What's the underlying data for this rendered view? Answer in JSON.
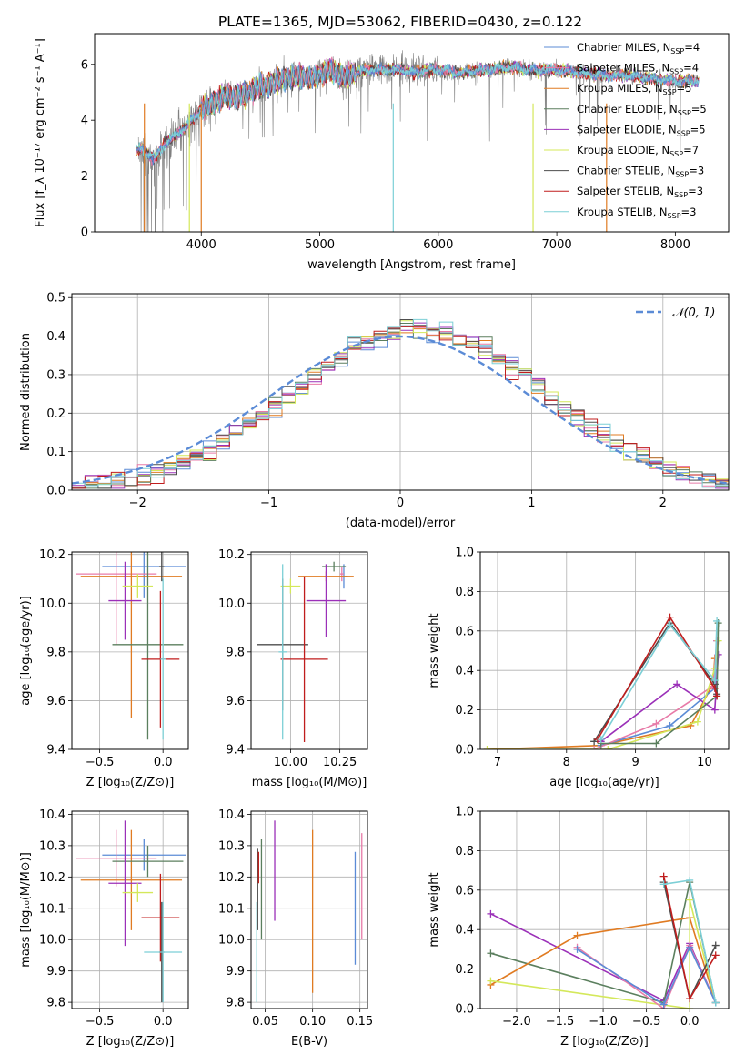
{
  "figure": {
    "title": "PLATE=1365, MJD=53062, FIBERID=0430, z=0.122"
  },
  "series_colors": {
    "Chabrier MILES": "#5b8bd6",
    "Salpeter MILES": "#e87ba8",
    "Kroupa MILES": "#e07b22",
    "Chabrier ELODIE": "#5b7f5e",
    "Salpeter ELODIE": "#9b30b8",
    "Kroupa ELODIE": "#d4e85a",
    "Chabrier STELIB": "#4d4d4d",
    "Salpeter STELIB": "#c01d1d",
    "Kroupa STELIB": "#7ccfd6"
  },
  "chart_data": [
    {
      "id": "spectrum",
      "type": "line",
      "title": "PLATE=1365, MJD=53062, FIBERID=0430, z=0.122",
      "xlabel": "wavelength [Angstrom, rest frame]",
      "ylabel": "Flux [f_λ 10⁻¹⁷ erg cm⁻² s⁻¹ A⁻¹]",
      "xlim": [
        3100,
        8450
      ],
      "ylim": [
        0,
        7.1
      ],
      "xticks": [
        4000,
        5000,
        6000,
        7000,
        8000
      ],
      "yticks": [
        0,
        2,
        4,
        6
      ],
      "grid": false,
      "legend_position": "top-right",
      "data_color": "#808080",
      "data_x_range": [
        3470,
        8200
      ],
      "continuum": {
        "x": [
          3450,
          3500,
          3600,
          3700,
          3800,
          3900,
          4000,
          4100,
          4200,
          4300,
          4400,
          4500,
          4600,
          4700,
          4800,
          4900,
          5000,
          5100,
          5200,
          5300,
          5400,
          5500,
          5600,
          5700,
          5800,
          5900,
          6000,
          6200,
          6400,
          6600,
          6800,
          7000,
          7200,
          7400,
          7600,
          7800,
          8000,
          8200
        ],
        "y": [
          2.9,
          3.0,
          2.6,
          3.2,
          3.5,
          3.9,
          4.4,
          4.6,
          4.9,
          4.8,
          5.0,
          5.2,
          5.3,
          5.5,
          5.6,
          5.5,
          5.6,
          5.8,
          5.5,
          5.7,
          5.8,
          5.8,
          5.8,
          5.8,
          5.7,
          5.8,
          5.8,
          5.7,
          5.8,
          5.9,
          5.8,
          5.8,
          5.7,
          5.6,
          5.6,
          5.5,
          5.4,
          5.4
        ]
      },
      "legend": [
        {
          "label": "Chabrier MILES, N",
          "sub": "SSP",
          "tail": "=4",
          "series": "Chabrier MILES"
        },
        {
          "label": "Salpeter MILES, N",
          "sub": "SSP",
          "tail": "=4",
          "series": "Salpeter MILES"
        },
        {
          "label": "Kroupa MILES, N",
          "sub": "SSP",
          "tail": "=5",
          "series": "Kroupa MILES"
        },
        {
          "label": "Chabrier ELODIE, N",
          "sub": "SSP",
          "tail": "=5",
          "series": "Chabrier ELODIE"
        },
        {
          "label": "Salpeter ELODIE, N",
          "sub": "SSP",
          "tail": "=5",
          "series": "Salpeter ELODIE"
        },
        {
          "label": "Kroupa ELODIE, N",
          "sub": "SSP",
          "tail": "=7",
          "series": "Kroupa ELODIE"
        },
        {
          "label": "Chabrier STELIB, N",
          "sub": "SSP",
          "tail": "=3",
          "series": "Chabrier STELIB"
        },
        {
          "label": "Salpeter STELIB, N",
          "sub": "SSP",
          "tail": "=3",
          "series": "Salpeter STELIB"
        },
        {
          "label": "Kroupa STELIB, N",
          "sub": "SSP",
          "tail": "=3",
          "series": "Kroupa STELIB"
        }
      ],
      "model_edges": [
        {
          "series": "Kroupa MILES",
          "x": 3520
        },
        {
          "series": "Kroupa ELODIE",
          "x": 3900
        },
        {
          "series": "Kroupa MILES",
          "x": 4000
        },
        {
          "series": "Kroupa STELIB",
          "x": 5620
        },
        {
          "series": "Kroupa ELODIE",
          "x": 6800
        },
        {
          "series": "Kroupa MILES",
          "x": 7420
        }
      ]
    },
    {
      "id": "residuals",
      "type": "area",
      "xlabel": "(data-model)/error",
      "ylabel": "Normed distribution",
      "xlim": [
        -2.5,
        2.5
      ],
      "ylim": [
        0,
        0.51
      ],
      "xticks": [
        -2,
        -1,
        0,
        1,
        2
      ],
      "xticklabels": [
        "−2",
        "−1",
        "0",
        "1",
        "2"
      ],
      "yticks": [
        0,
        0.1,
        0.2,
        0.3,
        0.4,
        0.5
      ],
      "yticklabels": [
        "0.0",
        "0.1",
        "0.2",
        "0.3",
        "0.4",
        "0.5"
      ],
      "grid": true,
      "bin_width": 0.1,
      "legend_position": "top-right",
      "gaussian_label": "𝒩(0, 1)",
      "gaussian_color": "#5b8bd6"
    },
    {
      "id": "age-vs-Z",
      "type": "scatter",
      "xlabel": "Z [log₁₀(Z/Z⊙)]",
      "ylabel": "age  [log₁₀(age/yr)]",
      "xlim": [
        -0.72,
        0.2
      ],
      "ylim": [
        9.4,
        10.21
      ],
      "xticks": [
        -0.5,
        0.0
      ],
      "xticklabels": [
        "−0.5",
        "0.0"
      ],
      "yticks": [
        9.4,
        9.6,
        9.8,
        10.0,
        10.2
      ],
      "yticklabels": [
        "9.4",
        "9.6",
        "9.8",
        "10.0",
        "10.2"
      ],
      "grid": true,
      "points": [
        {
          "series": "Chabrier MILES",
          "x": -0.15,
          "y": 10.15,
          "xerr": 0.33,
          "yerr": 0.13
        },
        {
          "series": "Salpeter MILES",
          "x": -0.37,
          "y": 10.12,
          "xerr": 0.32,
          "yerr": 0.29
        },
        {
          "series": "Kroupa MILES",
          "x": -0.25,
          "y": 10.11,
          "xerr": 0.4,
          "yerr": 0.58
        },
        {
          "series": "Chabrier ELODIE",
          "x": -0.12,
          "y": 9.83,
          "xerr": 0.28,
          "yerr": 0.39
        },
        {
          "series": "Salpeter ELODIE",
          "x": -0.3,
          "y": 10.01,
          "xerr": 0.13,
          "yerr": 0.16
        },
        {
          "series": "Kroupa ELODIE",
          "x": -0.2,
          "y": 10.07,
          "xerr": 0.12,
          "yerr": 0.05
        },
        {
          "series": "Chabrier STELIB",
          "x": -0.01,
          "y": 10.15,
          "xerr": 0.02,
          "yerr": 0.06
        },
        {
          "series": "Salpeter STELIB",
          "x": -0.02,
          "y": 9.77,
          "xerr": 0.15,
          "yerr": 0.28
        },
        {
          "series": "Kroupa STELIB",
          "x": 0.0,
          "y": 9.77,
          "xerr": 0.02,
          "yerr": 0.33
        }
      ]
    },
    {
      "id": "age-vs-mass",
      "type": "scatter",
      "xlabel": "mass [log₁₀(M/M⊙)]",
      "ylabel": "",
      "xlim": [
        9.8,
        10.39
      ],
      "ylim": [
        9.4,
        10.21
      ],
      "xticks": [
        10.0,
        10.25
      ],
      "xticklabels": [
        "10.00",
        "10.25"
      ],
      "yticks": [
        9.4,
        9.6,
        9.8,
        10.0,
        10.2
      ],
      "yticklabels": [
        "9.4",
        "9.6",
        "9.8",
        "10.0",
        "10.2"
      ],
      "grid": true,
      "points": [
        {
          "series": "Chabrier MILES",
          "x": 10.27,
          "y": 10.11,
          "xerr": 0.02,
          "yerr": 0.05
        },
        {
          "series": "Salpeter MILES",
          "x": 10.26,
          "y": 10.12,
          "xerr": 0.01,
          "yerr": 0.03
        },
        {
          "series": "Kroupa MILES",
          "x": 10.18,
          "y": 10.11,
          "xerr": 0.14,
          "yerr": 0.02
        },
        {
          "series": "Chabrier ELODIE",
          "x": 10.22,
          "y": 10.15,
          "xerr": 0.06,
          "yerr": 0.02
        },
        {
          "series": "Salpeter ELODIE",
          "x": 10.18,
          "y": 10.01,
          "xerr": 0.1,
          "yerr": 0.15
        },
        {
          "series": "Kroupa ELODIE",
          "x": 10.0,
          "y": 10.07,
          "xerr": 0.05,
          "yerr": 0.03
        },
        {
          "series": "Chabrier STELIB",
          "x": 9.96,
          "y": 9.83,
          "xerr": 0.13,
          "yerr": 0.27
        },
        {
          "series": "Salpeter STELIB",
          "x": 10.07,
          "y": 9.77,
          "xerr": 0.12,
          "yerr": 0.34
        },
        {
          "series": "Kroupa STELIB",
          "x": 9.96,
          "y": 9.8,
          "xerr": 0.02,
          "yerr": 0.36
        }
      ]
    },
    {
      "id": "weight-vs-age",
      "type": "line",
      "xlabel": "age  [log₁₀(age/yr)]",
      "ylabel": "mass weight",
      "xlim": [
        6.75,
        10.35
      ],
      "ylim": [
        0,
        1.0
      ],
      "xticks": [
        7,
        8,
        9,
        10
      ],
      "xticklabels": [
        "7",
        "8",
        "9",
        "10"
      ],
      "yticks": [
        0,
        0.2,
        0.4,
        0.6,
        0.8,
        1.0
      ],
      "yticklabels": [
        "0.0",
        "0.2",
        "0.4",
        "0.6",
        "0.8",
        "1.0"
      ],
      "grid": true,
      "series": [
        {
          "series": "Kroupa MILES",
          "x": [
            6.85,
            8.5,
            9.8,
            10.12,
            10.15
          ],
          "y": [
            0.0,
            0.02,
            0.12,
            0.33,
            0.46
          ]
        },
        {
          "series": "Chabrier MILES",
          "x": [
            8.5,
            9.5,
            10.15,
            10.18
          ],
          "y": [
            0.02,
            0.12,
            0.31,
            0.55
          ]
        },
        {
          "series": "Salpeter MILES",
          "x": [
            8.4,
            9.3,
            10.12,
            10.18
          ],
          "y": [
            0.0,
            0.13,
            0.32,
            0.55
          ]
        },
        {
          "series": "Salpeter ELODIE",
          "x": [
            8.5,
            9.6,
            10.15,
            10.2
          ],
          "y": [
            0.04,
            0.33,
            0.2,
            0.48
          ]
        },
        {
          "series": "Kroupa ELODIE",
          "x": [
            6.85,
            8.6,
            9.9,
            10.15,
            10.2
          ],
          "y": [
            0.0,
            0.0,
            0.14,
            0.41,
            0.55
          ]
        },
        {
          "series": "Chabrier ELODIE",
          "x": [
            8.5,
            9.3,
            10.18,
            10.2
          ],
          "y": [
            0.03,
            0.03,
            0.27,
            0.64
          ]
        },
        {
          "series": "Chabrier STELIB",
          "x": [
            8.4,
            9.5,
            10.15,
            10.18
          ],
          "y": [
            0.04,
            0.64,
            0.33,
            0.28
          ]
        },
        {
          "series": "Salpeter STELIB",
          "x": [
            8.45,
            9.5,
            10.15,
            10.18
          ],
          "y": [
            0.05,
            0.67,
            0.31,
            0.27
          ]
        },
        {
          "series": "Kroupa STELIB",
          "x": [
            8.5,
            9.5,
            10.15,
            10.18
          ],
          "y": [
            0.05,
            0.63,
            0.35,
            0.65
          ]
        }
      ]
    },
    {
      "id": "mass-vs-Z",
      "type": "scatter",
      "xlabel": "Z [log₁₀(Z/Z⊙)]",
      "ylabel": "mass [log₁₀(M/M⊙)]",
      "xlim": [
        -0.72,
        0.2
      ],
      "ylim": [
        9.78,
        10.41
      ],
      "xticks": [
        -0.5,
        0.0
      ],
      "xticklabels": [
        "−0.5",
        "0.0"
      ],
      "yticks": [
        9.8,
        9.9,
        10.0,
        10.1,
        10.2,
        10.3,
        10.4
      ],
      "yticklabels": [
        "9.8",
        "9.9",
        "10.0",
        "10.1",
        "10.2",
        "10.3",
        "10.4"
      ],
      "grid": true,
      "points": [
        {
          "series": "Chabrier MILES",
          "x": -0.15,
          "y": 10.27,
          "xerr": 0.33,
          "yerr": 0.05
        },
        {
          "series": "Salpeter MILES",
          "x": -0.37,
          "y": 10.26,
          "xerr": 0.32,
          "yerr": 0.09
        },
        {
          "series": "Kroupa MILES",
          "x": -0.25,
          "y": 10.19,
          "xerr": 0.4,
          "yerr": 0.16
        },
        {
          "series": "Chabrier ELODIE",
          "x": -0.12,
          "y": 10.25,
          "xerr": 0.28,
          "yerr": 0.05
        },
        {
          "series": "Salpeter ELODIE",
          "x": -0.3,
          "y": 10.18,
          "xerr": 0.13,
          "yerr": 0.2
        },
        {
          "series": "Kroupa ELODIE",
          "x": -0.2,
          "y": 10.15,
          "xerr": 0.12,
          "yerr": 0.03
        },
        {
          "series": "Chabrier STELIB",
          "x": -0.01,
          "y": 9.96,
          "xerr": 0.02,
          "yerr": 0.16
        },
        {
          "series": "Salpeter STELIB",
          "x": -0.02,
          "y": 10.07,
          "xerr": 0.15,
          "yerr": 0.14
        },
        {
          "series": "Kroupa STELIB",
          "x": 0.0,
          "y": 9.96,
          "xerr": 0.15,
          "yerr": 0.16
        }
      ]
    },
    {
      "id": "mass-vs-ebv",
      "type": "scatter",
      "xlabel": "E(B-V)",
      "ylabel": "",
      "xlim": [
        0.035,
        0.158
      ],
      "ylim": [
        9.78,
        10.41
      ],
      "xticks": [
        0.05,
        0.1,
        0.15
      ],
      "xticklabels": [
        "0.05",
        "0.10",
        "0.15"
      ],
      "yticks": [
        9.8,
        9.9,
        10.0,
        10.1,
        10.2,
        10.3,
        10.4
      ],
      "yticklabels": [
        "9.8",
        "9.9",
        "10.0",
        "10.1",
        "10.2",
        "10.3",
        "10.4"
      ],
      "grid": true,
      "points": [
        {
          "series": "Chabrier MILES",
          "x": 0.145,
          "y": 10.1,
          "xerr": 0,
          "yerr": 0.18
        },
        {
          "series": "Salpeter MILES",
          "x": 0.152,
          "y": 10.17,
          "xerr": 0,
          "yerr": 0.17
        },
        {
          "series": "Kroupa MILES",
          "x": 0.1,
          "y": 10.09,
          "xerr": 0,
          "yerr": 0.26
        },
        {
          "series": "Chabrier ELODIE",
          "x": 0.046,
          "y": 10.16,
          "xerr": 0,
          "yerr": 0.16
        },
        {
          "series": "Salpeter ELODIE",
          "x": 0.06,
          "y": 10.22,
          "xerr": 0,
          "yerr": 0.16
        },
        {
          "series": "Kroupa ELODIE",
          "x": 0.043,
          "y": 10.23,
          "xerr": 0,
          "yerr": 0.05
        },
        {
          "series": "Chabrier STELIB",
          "x": 0.042,
          "y": 10.16,
          "xerr": 0,
          "yerr": 0.13
        },
        {
          "series": "Salpeter STELIB",
          "x": 0.043,
          "y": 10.23,
          "xerr": 0,
          "yerr": 0.05
        },
        {
          "series": "Kroupa STELIB",
          "x": 0.041,
          "y": 9.96,
          "xerr": 0,
          "yerr": 0.16
        }
      ]
    },
    {
      "id": "weight-vs-Z",
      "type": "line",
      "xlabel": "Z [log₁₀(Z/Z⊙)]",
      "ylabel": "mass weight",
      "xlim": [
        -2.42,
        0.45
      ],
      "ylim": [
        0,
        1.0
      ],
      "xticks": [
        -2.0,
        -1.5,
        -1.0,
        -0.5,
        0.0
      ],
      "xticklabels": [
        "−2.0",
        "−1.5",
        "−1.0",
        "−0.5",
        "0.0"
      ],
      "yticks": [
        0,
        0.2,
        0.4,
        0.6,
        0.8,
        1.0
      ],
      "yticklabels": [
        "0.0",
        "0.2",
        "0.4",
        "0.6",
        "0.8",
        "1.0"
      ],
      "grid": true,
      "series": [
        {
          "series": "Salpeter ELODIE",
          "x": [
            -2.3,
            -0.3,
            0.0,
            0.3
          ],
          "y": [
            0.48,
            0.04,
            0.33,
            0.03
          ]
        },
        {
          "series": "Chabrier ELODIE",
          "x": [
            -2.3,
            -0.3,
            0.0,
            0.3
          ],
          "y": [
            0.28,
            0.03,
            0.64,
            0.03
          ]
        },
        {
          "series": "Kroupa MILES",
          "x": [
            -2.3,
            -1.3,
            0.0,
            0.3
          ],
          "y": [
            0.12,
            0.37,
            0.46,
            0.03
          ]
        },
        {
          "series": "Kroupa ELODIE",
          "x": [
            -2.3,
            0.0,
            0.0,
            0.3
          ],
          "y": [
            0.14,
            0.0,
            0.55,
            0.03
          ]
        },
        {
          "series": "Salpeter MILES",
          "x": [
            -1.3,
            -0.3,
            0.0,
            0.3
          ],
          "y": [
            0.31,
            0.0,
            0.32,
            0.03
          ]
        },
        {
          "series": "Chabrier MILES",
          "x": [
            -1.3,
            -0.3,
            0.0,
            0.3
          ],
          "y": [
            0.3,
            0.02,
            0.31,
            0.03
          ]
        },
        {
          "series": "Chabrier STELIB",
          "x": [
            -0.3,
            0.0,
            0.3
          ],
          "y": [
            0.64,
            0.05,
            0.32
          ]
        },
        {
          "series": "Salpeter STELIB",
          "x": [
            -0.3,
            0.0,
            0.3
          ],
          "y": [
            0.67,
            0.05,
            0.27
          ]
        },
        {
          "series": "Kroupa STELIB",
          "x": [
            -0.3,
            0.0,
            0.3
          ],
          "y": [
            0.63,
            0.65,
            0.03
          ]
        }
      ]
    }
  ]
}
